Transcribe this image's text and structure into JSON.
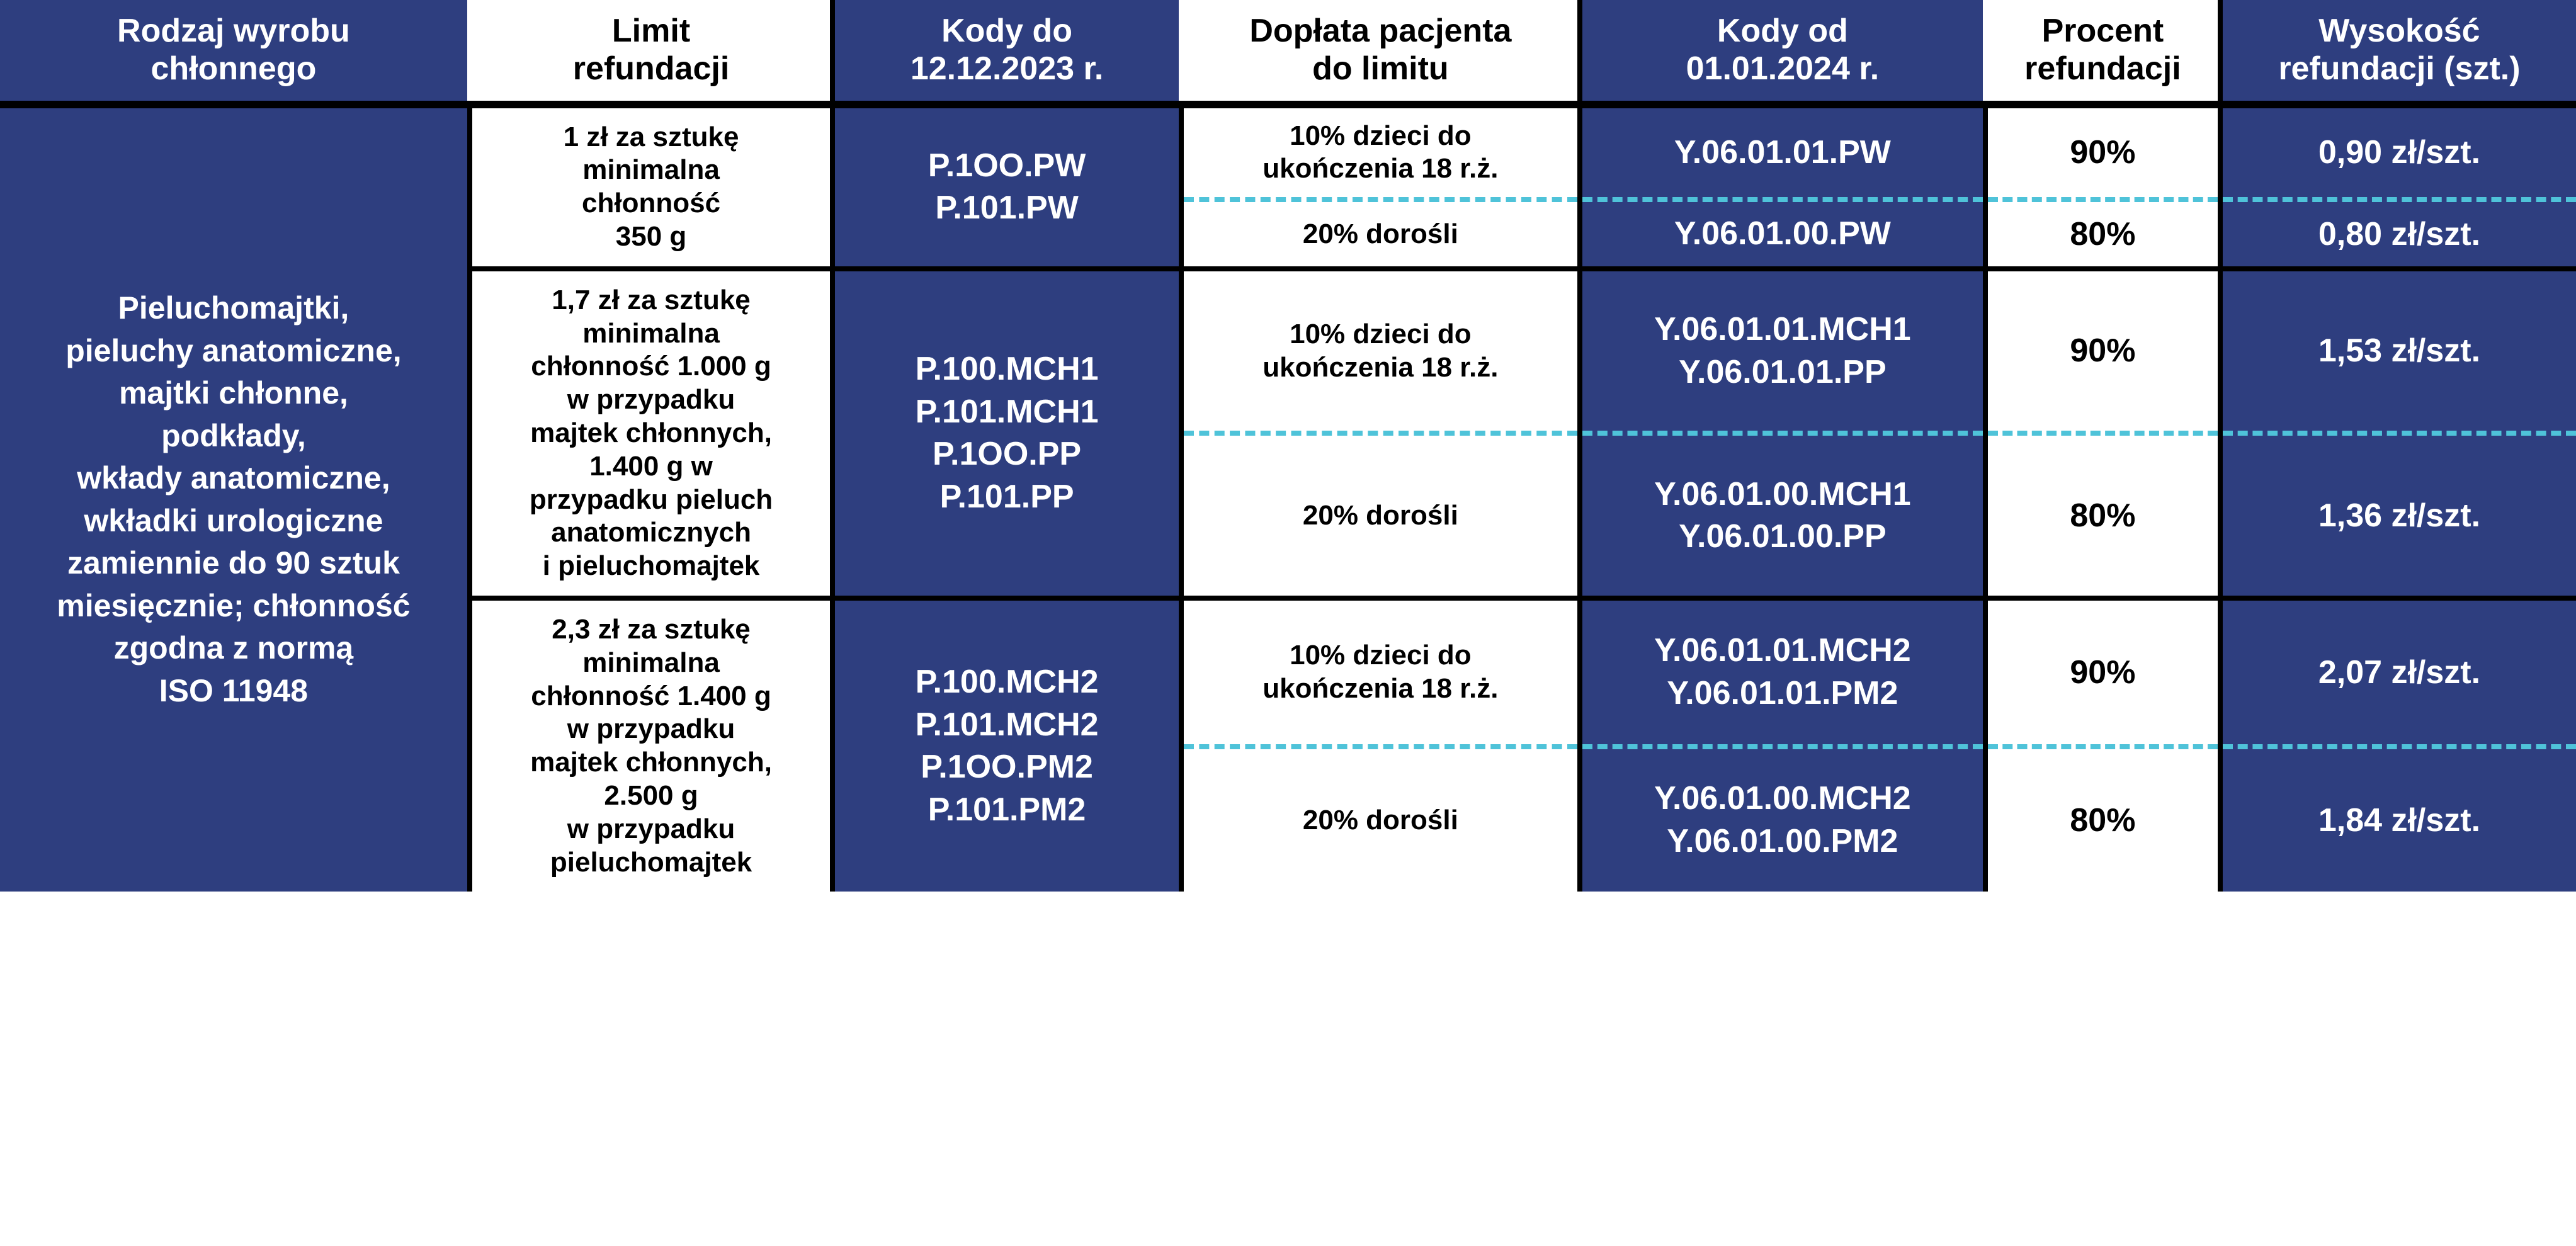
{
  "colors": {
    "blue": "#2e3e7f",
    "white": "#ffffff",
    "black": "#000000",
    "dash": "#4fc3d9"
  },
  "headers": {
    "type": "Rodzaj wyrobu\nchłonnego",
    "limit": "Limit\nrefundacji",
    "old_codes": "Kody do\n12.12.2023 r.",
    "copay": "Dopłata pacjenta\ndo limitu",
    "new_codes": "Kody od\n01.01.2024 r.",
    "pct": "Procent\nrefundacji",
    "amount": "Wysokość\nrefundacji (szt.)"
  },
  "product_type": "Pieluchomajtki,\npieluchy anatomiczne,\nmajtki chłonne,\npodkłady,\nwkłady anatomiczne,\nwkładki urologiczne\nzamiennie do 90 sztuk\nmiesięcznie; chłonność\nzgodna z normą\nISO 11948",
  "groups": [
    {
      "limit": "1 zł za sztukę\nminimalna\nchłonność\n350 g",
      "old_codes": "P.1OO.PW\nP.101.PW",
      "rows": [
        {
          "copay": "10% dzieci do\nukończenia 18 r.ż.",
          "new_codes": "Y.06.01.01.PW",
          "pct": "90%",
          "amount": "0,90 zł/szt."
        },
        {
          "copay": "20% dorośli",
          "new_codes": "Y.06.01.00.PW",
          "pct": "80%",
          "amount": "0,80 zł/szt."
        }
      ]
    },
    {
      "limit": "1,7 zł za sztukę\nminimalna\nchłonność 1.000 g\nw przypadku\nmajtek chłonnych,\n1.400 g w\nprzypadku pieluch\nanatomicznych\ni pieluchomajtek",
      "old_codes": "P.100.MCH1\nP.101.MCH1\nP.1OO.PP\nP.101.PP",
      "rows": [
        {
          "copay": "10% dzieci do\nukończenia 18 r.ż.",
          "new_codes": "Y.06.01.01.MCH1\nY.06.01.01.PP",
          "pct": "90%",
          "amount": "1,53 zł/szt."
        },
        {
          "copay": "20% dorośli",
          "new_codes": "Y.06.01.00.MCH1\nY.06.01.00.PP",
          "pct": "80%",
          "amount": "1,36 zł/szt."
        }
      ]
    },
    {
      "limit": "2,3 zł za sztukę\nminimalna\nchłonność 1.400 g\nw przypadku\nmajtek chłonnych,\n2.500 g\nw przypadku\npieluchomajtek",
      "old_codes": "P.100.MCH2\nP.101.MCH2\nP.1OO.PM2\nP.101.PM2",
      "rows": [
        {
          "copay": "10% dzieci do\nukończenia 18 r.ż.",
          "new_codes": "Y.06.01.01.MCH2\nY.06.01.01.PM2",
          "pct": "90%",
          "amount": "2,07 zł/szt."
        },
        {
          "copay": "20% dorośli",
          "new_codes": "Y.06.01.00.MCH2\nY.06.01.00.PM2",
          "pct": "80%",
          "amount": "1,84 zł/szt."
        }
      ]
    }
  ]
}
